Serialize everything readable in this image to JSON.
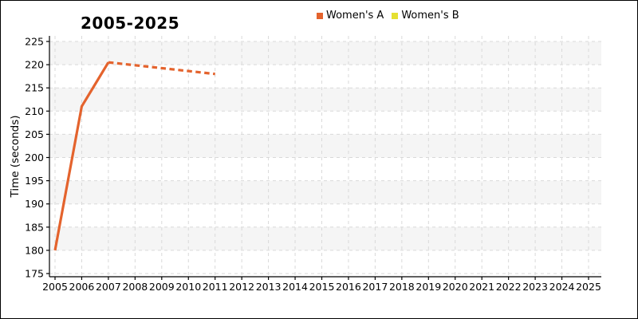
{
  "chart_data": {
    "type": "line",
    "title": "2005-2025",
    "xlabel": "",
    "ylabel": "Time (seconds)",
    "x_ticks": [
      2005,
      2006,
      2007,
      2008,
      2009,
      2010,
      2011,
      2012,
      2013,
      2014,
      2015,
      2016,
      2017,
      2018,
      2019,
      2020,
      2021,
      2022,
      2023,
      2024,
      2025
    ],
    "y_ticks": [
      175,
      180,
      185,
      190,
      195,
      200,
      205,
      210,
      215,
      220,
      225
    ],
    "ylim": [
      173.5,
      226.5
    ],
    "grid": {
      "horizontal": true,
      "vertical": true,
      "style": "dashed",
      "color": "#d9d9d9"
    },
    "bands": {
      "color": "#f5f5f5",
      "intervals": [
        [
          180,
          185
        ],
        [
          190,
          195
        ],
        [
          200,
          205
        ],
        [
          210,
          215
        ],
        [
          220,
          225
        ]
      ]
    },
    "legend_position": "top-center",
    "series": [
      {
        "name": "Women's A",
        "color": "#e4632d",
        "segments": [
          {
            "style": "solid",
            "points": [
              [
                2005,
                180
              ],
              [
                2006,
                211
              ],
              [
                2007,
                220.5
              ]
            ]
          },
          {
            "style": "dashed",
            "points": [
              [
                2007,
                220.5
              ],
              [
                2011,
                218
              ]
            ]
          }
        ]
      },
      {
        "name": "Women's B",
        "color": "#e5e032",
        "segments": [],
        "note": "line not visible in plot (fully overlapped by Women's A)"
      }
    ]
  }
}
